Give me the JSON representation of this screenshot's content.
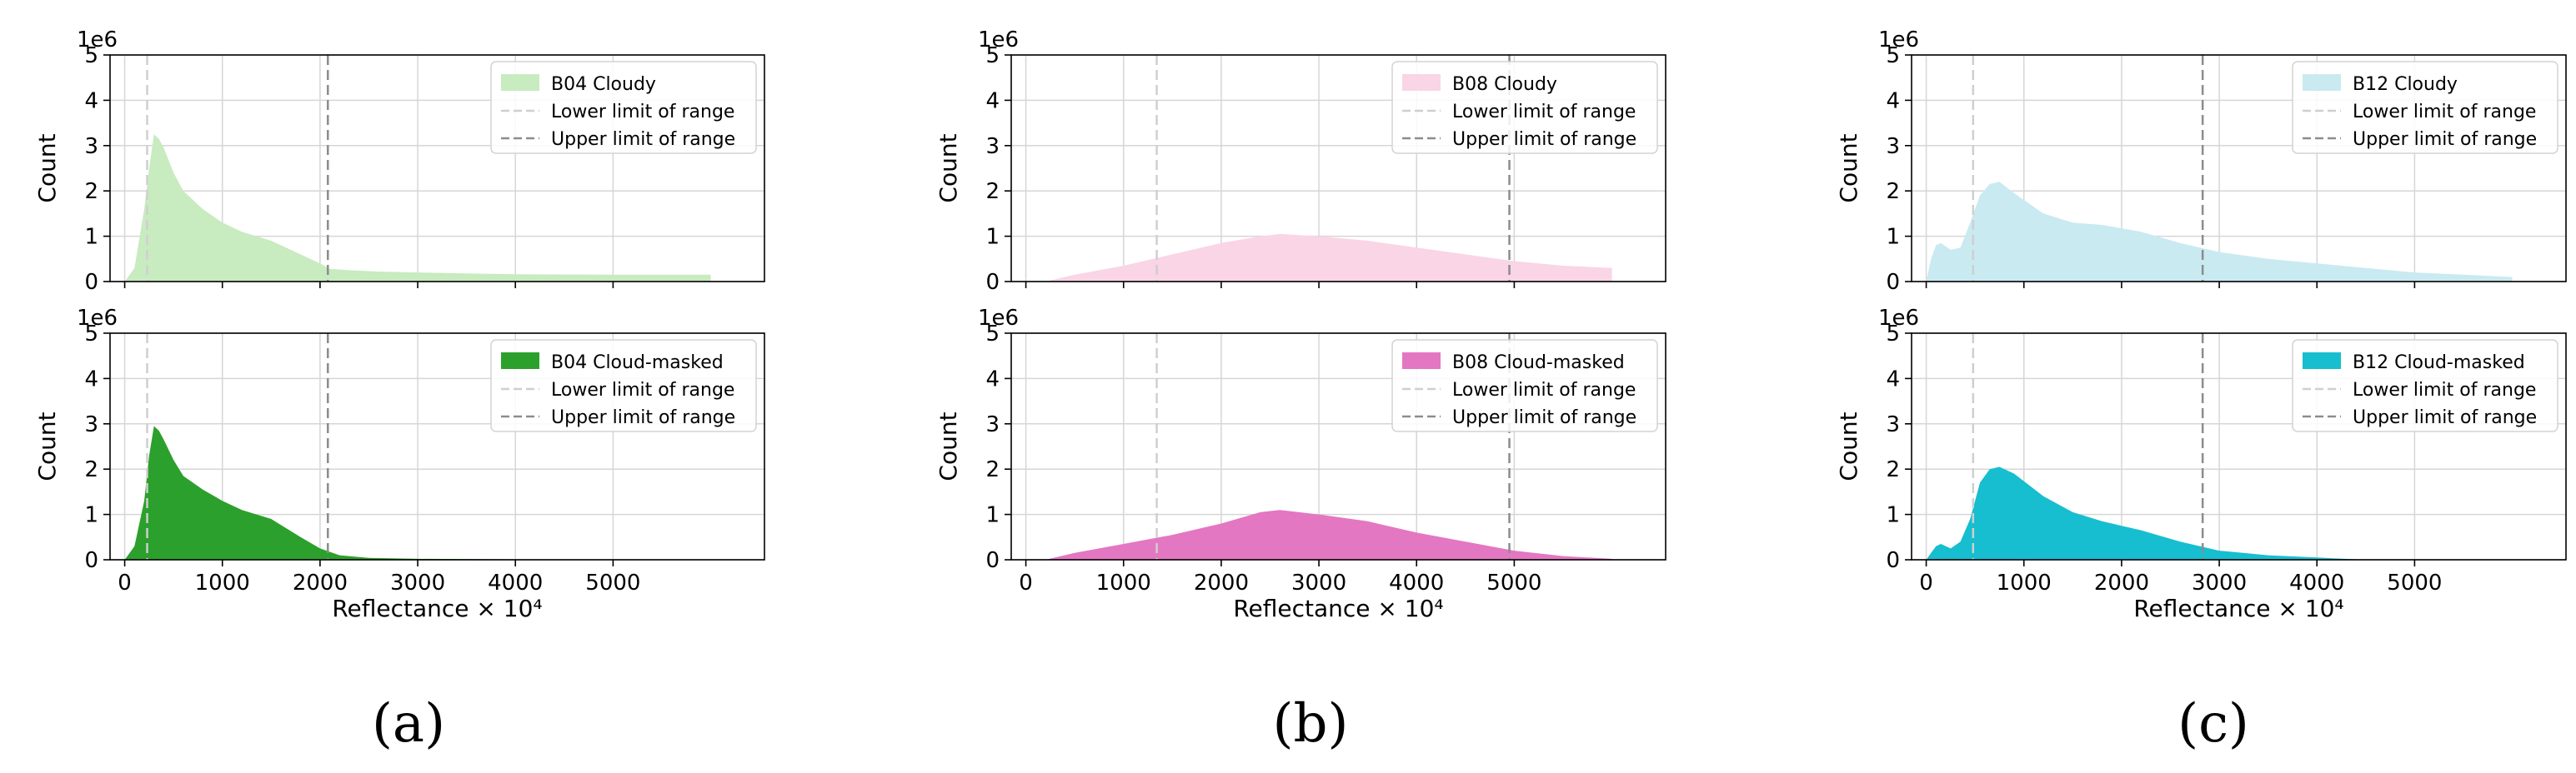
{
  "figure": {
    "subfigure_labels": [
      "(a)",
      "(b)",
      "(c)"
    ]
  },
  "chart_data": [
    {
      "type": "area",
      "id": "a-top",
      "band": "B04",
      "variant": "Cloudy",
      "legend": [
        "B04 Cloudy",
        "Lower limit of range",
        "Upper limit of range"
      ],
      "color": "#c8ebc0",
      "scale_label": "1e6",
      "ylabel": "Count",
      "xlabel": "",
      "xlim": [
        -150,
        6550
      ],
      "ylim": [
        0,
        5
      ],
      "yticks": [
        0,
        1,
        2,
        3,
        4,
        5
      ],
      "ytick_labels": [
        "0",
        "1",
        "2",
        "3",
        "4",
        "5"
      ],
      "xticks": [
        0,
        1000,
        2000,
        3000,
        4000,
        5000
      ],
      "xtick_labels": [],
      "lower_limit": 230,
      "upper_limit": 2080,
      "x": [
        0,
        100,
        200,
        250,
        300,
        350,
        400,
        500,
        600,
        800,
        1000,
        1200,
        1500,
        1800,
        2000,
        2100,
        2300,
        2600,
        3000,
        3500,
        4000,
        5000,
        6000
      ],
      "y": [
        0,
        0.3,
        1.6,
        2.5,
        3.25,
        3.15,
        2.95,
        2.4,
        2.0,
        1.6,
        1.3,
        1.1,
        0.9,
        0.6,
        0.4,
        0.28,
        0.25,
        0.22,
        0.2,
        0.18,
        0.16,
        0.15,
        0.15
      ]
    },
    {
      "type": "area",
      "id": "a-bottom",
      "band": "B04",
      "variant": "Cloud-masked",
      "legend": [
        "B04 Cloud-masked",
        "Lower limit of range",
        "Upper limit of range"
      ],
      "color": "#2ca02c",
      "scale_label": "1e6",
      "ylabel": "Count",
      "xlabel": "Reflectance × 10⁴",
      "xlim": [
        -150,
        6550
      ],
      "ylim": [
        0,
        5
      ],
      "yticks": [
        0,
        1,
        2,
        3,
        4,
        5
      ],
      "ytick_labels": [
        "0",
        "1",
        "2",
        "3",
        "4",
        "5"
      ],
      "xticks": [
        0,
        1000,
        2000,
        3000,
        4000,
        5000
      ],
      "xtick_labels": [
        "0",
        "1000",
        "2000",
        "3000",
        "4000",
        "5000"
      ],
      "lower_limit": 230,
      "upper_limit": 2080,
      "x": [
        0,
        100,
        200,
        250,
        300,
        350,
        400,
        500,
        600,
        800,
        1000,
        1200,
        1500,
        1800,
        2000,
        2200,
        2500,
        3000,
        4000,
        5000,
        6000
      ],
      "y": [
        0,
        0.3,
        1.3,
        2.3,
        2.95,
        2.85,
        2.65,
        2.2,
        1.85,
        1.55,
        1.3,
        1.1,
        0.9,
        0.5,
        0.25,
        0.1,
        0.04,
        0.02,
        0.01,
        0.01,
        0.0
      ]
    },
    {
      "type": "area",
      "id": "b-top",
      "band": "B08",
      "variant": "Cloudy",
      "legend": [
        "B08 Cloudy",
        "Lower limit of range",
        "Upper limit of range"
      ],
      "color": "#f9d5e6",
      "scale_label": "1e6",
      "ylabel": "Count",
      "xlabel": "",
      "xlim": [
        -150,
        6550
      ],
      "ylim": [
        0,
        5
      ],
      "yticks": [
        0,
        1,
        2,
        3,
        4,
        5
      ],
      "ytick_labels": [
        "0",
        "1",
        "2",
        "3",
        "4",
        "5"
      ],
      "xticks": [
        0,
        1000,
        2000,
        3000,
        4000,
        5000
      ],
      "xtick_labels": [],
      "lower_limit": 1340,
      "upper_limit": 4950,
      "x": [
        200,
        500,
        1000,
        1500,
        2000,
        2400,
        2600,
        3000,
        3500,
        4000,
        4500,
        5000,
        5500,
        6000
      ],
      "y": [
        0,
        0.15,
        0.35,
        0.6,
        0.85,
        1.0,
        1.05,
        1.0,
        0.9,
        0.75,
        0.6,
        0.45,
        0.35,
        0.3
      ]
    },
    {
      "type": "area",
      "id": "b-bottom",
      "band": "B08",
      "variant": "Cloud-masked",
      "legend": [
        "B08 Cloud-masked",
        "Lower limit of range",
        "Upper limit of range"
      ],
      "color": "#e377c2",
      "scale_label": "1e6",
      "ylabel": "Count",
      "xlabel": "Reflectance × 10⁴",
      "xlim": [
        -150,
        6550
      ],
      "ylim": [
        0,
        5
      ],
      "yticks": [
        0,
        1,
        2,
        3,
        4,
        5
      ],
      "ytick_labels": [
        "0",
        "1",
        "2",
        "3",
        "4",
        "5"
      ],
      "xticks": [
        0,
        1000,
        2000,
        3000,
        4000,
        5000
      ],
      "xtick_labels": [
        "0",
        "1000",
        "2000",
        "3000",
        "4000",
        "5000"
      ],
      "lower_limit": 1340,
      "upper_limit": 4950,
      "x": [
        200,
        500,
        1000,
        1500,
        2000,
        2400,
        2600,
        3000,
        3500,
        4000,
        4500,
        5000,
        5500,
        6000
      ],
      "y": [
        0,
        0.15,
        0.35,
        0.55,
        0.8,
        1.05,
        1.1,
        1.0,
        0.85,
        0.6,
        0.4,
        0.2,
        0.08,
        0.02
      ]
    },
    {
      "type": "area",
      "id": "c-top",
      "band": "B12",
      "variant": "Cloudy",
      "legend": [
        "B12 Cloudy",
        "Lower limit of range",
        "Upper limit of range"
      ],
      "color": "#c9eaf0",
      "scale_label": "1e6",
      "ylabel": "Count",
      "xlabel": "",
      "xlim": [
        -150,
        6550
      ],
      "ylim": [
        0,
        5
      ],
      "yticks": [
        0,
        1,
        2,
        3,
        4,
        5
      ],
      "ytick_labels": [
        "0",
        "1",
        "2",
        "3",
        "4",
        "5"
      ],
      "xticks": [
        0,
        1000,
        2000,
        3000,
        4000,
        5000
      ],
      "xtick_labels": [],
      "lower_limit": 480,
      "upper_limit": 2830,
      "x": [
        0,
        50,
        100,
        150,
        250,
        350,
        450,
        550,
        650,
        750,
        900,
        1200,
        1500,
        1800,
        2200,
        2600,
        3000,
        3500,
        4000,
        4500,
        5000,
        5500,
        6000
      ],
      "y": [
        0,
        0.5,
        0.8,
        0.85,
        0.7,
        0.75,
        1.3,
        1.9,
        2.15,
        2.2,
        1.95,
        1.5,
        1.3,
        1.25,
        1.1,
        0.85,
        0.65,
        0.5,
        0.4,
        0.3,
        0.2,
        0.15,
        0.1
      ]
    },
    {
      "type": "area",
      "id": "c-bottom",
      "band": "B12",
      "variant": "Cloud-masked",
      "legend": [
        "B12 Cloud-masked",
        "Lower limit of range",
        "Upper limit of range"
      ],
      "color": "#17becf",
      "scale_label": "1e6",
      "ylabel": "Count",
      "xlabel": "Reflectance × 10⁴",
      "xlim": [
        -150,
        6550
      ],
      "ylim": [
        0,
        5
      ],
      "yticks": [
        0,
        1,
        2,
        3,
        4,
        5
      ],
      "ytick_labels": [
        "0",
        "1",
        "2",
        "3",
        "4",
        "5"
      ],
      "xticks": [
        0,
        1000,
        2000,
        3000,
        4000,
        5000
      ],
      "xtick_labels": [
        "0",
        "1000",
        "2000",
        "3000",
        "4000",
        "5000"
      ],
      "lower_limit": 480,
      "upper_limit": 2830,
      "x": [
        0,
        50,
        100,
        150,
        250,
        350,
        450,
        550,
        650,
        750,
        900,
        1200,
        1500,
        1800,
        2200,
        2600,
        3000,
        3500,
        4000,
        4500
      ],
      "y": [
        0,
        0.15,
        0.3,
        0.35,
        0.25,
        0.4,
        0.9,
        1.7,
        2.0,
        2.05,
        1.9,
        1.4,
        1.05,
        0.85,
        0.65,
        0.4,
        0.2,
        0.1,
        0.05,
        0.0
      ]
    }
  ]
}
